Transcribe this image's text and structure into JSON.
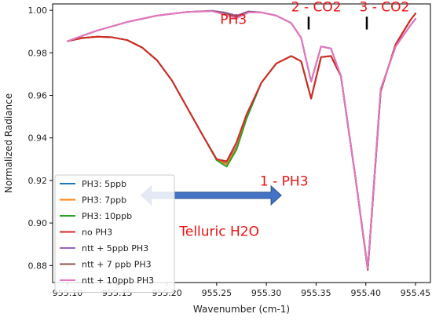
{
  "chart_data": {
    "type": "line",
    "xlabel": "Wavenumber (cm-1)",
    "ylabel": "Normalized Radiance",
    "xlim": [
      955.085,
      955.465
    ],
    "ylim": [
      0.872,
      1.003
    ],
    "xticks": [
      "955.10",
      "955.15",
      "955.20",
      "955.25",
      "955.30",
      "955.35",
      "955.40",
      "955.45"
    ],
    "yticks": [
      "0.88",
      "0.90",
      "0.92",
      "0.94",
      "0.96",
      "0.98",
      "1.00"
    ],
    "grid": false,
    "legend_position": "lower-left",
    "series": [
      {
        "name": "PH3: 5ppb",
        "color": "#1f77b4",
        "x": [
          955.1,
          955.115,
          955.13,
          955.145,
          955.16,
          955.175,
          955.19,
          955.205,
          955.22,
          955.235,
          955.25,
          955.26,
          955.27,
          955.28,
          955.295,
          955.31,
          955.325,
          955.335,
          955.345,
          955.355,
          955.365,
          955.375,
          955.39,
          955.402,
          955.415,
          955.43,
          955.445,
          955.45
        ],
        "y": [
          0.9855,
          0.987,
          0.9876,
          0.9873,
          0.986,
          0.9825,
          0.9765,
          0.967,
          0.9545,
          0.942,
          0.93,
          0.928,
          0.936,
          0.95,
          0.966,
          0.975,
          0.9785,
          0.976,
          0.9585,
          0.978,
          0.9785,
          0.969,
          0.92,
          0.878,
          0.962,
          0.984,
          0.9955,
          0.9985
        ]
      },
      {
        "name": "PH3: 7ppb",
        "color": "#ff7f0e",
        "x": [
          955.1,
          955.115,
          955.13,
          955.145,
          955.16,
          955.175,
          955.19,
          955.205,
          955.22,
          955.235,
          955.25,
          955.26,
          955.27,
          955.28,
          955.295,
          955.31,
          955.325,
          955.335,
          955.345,
          955.355,
          955.365,
          955.375,
          955.39,
          955.402,
          955.415,
          955.43,
          955.445,
          955.45
        ],
        "y": [
          0.9855,
          0.987,
          0.9876,
          0.9873,
          0.986,
          0.9825,
          0.9765,
          0.967,
          0.9545,
          0.942,
          0.9298,
          0.9276,
          0.9355,
          0.9497,
          0.966,
          0.975,
          0.9785,
          0.976,
          0.9585,
          0.978,
          0.9785,
          0.969,
          0.92,
          0.878,
          0.962,
          0.984,
          0.9955,
          0.9985
        ]
      },
      {
        "name": "PH3: 10ppb",
        "color": "#2ca02c",
        "x": [
          955.1,
          955.115,
          955.13,
          955.145,
          955.16,
          955.175,
          955.19,
          955.205,
          955.22,
          955.235,
          955.25,
          955.26,
          955.27,
          955.28,
          955.295,
          955.31,
          955.325,
          955.335,
          955.345,
          955.355,
          955.365,
          955.375,
          955.39,
          955.402,
          955.415,
          955.43,
          955.445,
          955.45
        ],
        "y": [
          0.9855,
          0.987,
          0.9876,
          0.9873,
          0.986,
          0.9825,
          0.9765,
          0.967,
          0.9545,
          0.942,
          0.9295,
          0.9265,
          0.9345,
          0.949,
          0.966,
          0.975,
          0.9785,
          0.976,
          0.9585,
          0.978,
          0.9785,
          0.969,
          0.92,
          0.878,
          0.962,
          0.984,
          0.9955,
          0.9985
        ]
      },
      {
        "name": "no PH3",
        "color": "#d62728",
        "x": [
          955.1,
          955.115,
          955.13,
          955.145,
          955.16,
          955.175,
          955.19,
          955.205,
          955.22,
          955.235,
          955.25,
          955.26,
          955.27,
          955.28,
          955.295,
          955.31,
          955.325,
          955.335,
          955.345,
          955.355,
          955.365,
          955.375,
          955.39,
          955.402,
          955.415,
          955.43,
          955.445,
          955.45
        ],
        "y": [
          0.9855,
          0.987,
          0.9876,
          0.9873,
          0.986,
          0.9825,
          0.9765,
          0.967,
          0.9545,
          0.942,
          0.93,
          0.929,
          0.938,
          0.951,
          0.966,
          0.975,
          0.9785,
          0.976,
          0.9585,
          0.978,
          0.9785,
          0.969,
          0.92,
          0.878,
          0.962,
          0.984,
          0.9955,
          0.9985
        ]
      },
      {
        "name": "ntt + 5ppb PH3",
        "color": "#9467bd",
        "x": [
          955.1,
          955.13,
          955.16,
          955.19,
          955.22,
          955.245,
          955.258,
          955.27,
          955.282,
          955.295,
          955.31,
          955.325,
          955.335,
          955.345,
          955.355,
          955.365,
          955.375,
          955.39,
          955.402,
          955.415,
          955.43,
          955.445,
          955.45
        ],
        "y": [
          0.9855,
          0.9905,
          0.9945,
          0.9975,
          0.9992,
          0.9998,
          0.999,
          0.9975,
          0.9995,
          0.999,
          0.9975,
          0.994,
          0.987,
          0.9665,
          0.983,
          0.982,
          0.969,
          0.92,
          0.8785,
          0.963,
          0.983,
          0.993,
          0.996
        ]
      },
      {
        "name": "ntt + 7 ppb PH3",
        "color": "#8c564b",
        "x": [
          955.1,
          955.13,
          955.16,
          955.19,
          955.22,
          955.245,
          955.258,
          955.27,
          955.282,
          955.295,
          955.31,
          955.325,
          955.335,
          955.345,
          955.355,
          955.365,
          955.375,
          955.39,
          955.402,
          955.415,
          955.43,
          955.445,
          955.45
        ],
        "y": [
          0.9855,
          0.9905,
          0.9945,
          0.9975,
          0.9992,
          0.9997,
          0.9986,
          0.997,
          0.9993,
          0.999,
          0.9975,
          0.994,
          0.987,
          0.9665,
          0.983,
          0.982,
          0.969,
          0.92,
          0.8785,
          0.963,
          0.983,
          0.993,
          0.996
        ]
      },
      {
        "name": "ntt + 10ppb PH3",
        "color": "#e377c2",
        "x": [
          955.1,
          955.13,
          955.16,
          955.19,
          955.22,
          955.245,
          955.258,
          955.27,
          955.282,
          955.295,
          955.31,
          955.325,
          955.335,
          955.345,
          955.355,
          955.365,
          955.375,
          955.39,
          955.402,
          955.415,
          955.43,
          955.445,
          955.45
        ],
        "y": [
          0.9855,
          0.9905,
          0.9945,
          0.9975,
          0.9992,
          0.9996,
          0.998,
          0.9962,
          0.999,
          0.999,
          0.9975,
          0.994,
          0.987,
          0.9665,
          0.983,
          0.982,
          0.969,
          0.92,
          0.8785,
          0.963,
          0.983,
          0.993,
          0.996
        ]
      }
    ],
    "annotations": [
      {
        "text": "PH3",
        "x": 955.2535,
        "y": 0.9935,
        "anchor": "start",
        "color": "#ee1111"
      },
      {
        "text": "2 - CO2",
        "x": 955.325,
        "y": 0.9995,
        "anchor": "start",
        "color": "#ee1111"
      },
      {
        "text": "3 - CO2",
        "x": 955.3935,
        "y": 0.9995,
        "anchor": "start",
        "color": "#ee1111"
      },
      {
        "text": "1 - PH3",
        "x": 955.2935,
        "y": 0.9175,
        "anchor": "start",
        "color": "#ee1111"
      },
      {
        "text": "Telluric H2O",
        "x": 955.2125,
        "y": 0.894,
        "anchor": "start",
        "color": "#ee1111"
      }
    ],
    "markers": [
      {
        "type": "tick",
        "x": 955.3425,
        "y1": 0.997,
        "y2": 0.991,
        "color": "#000000"
      },
      {
        "type": "tick",
        "x": 955.401,
        "y1": 0.997,
        "y2": 0.991,
        "color": "#000000"
      },
      {
        "type": "double-arrow",
        "x1": 955.174,
        "x2": 955.315,
        "y": 0.913,
        "color": "#4472c4"
      }
    ]
  }
}
